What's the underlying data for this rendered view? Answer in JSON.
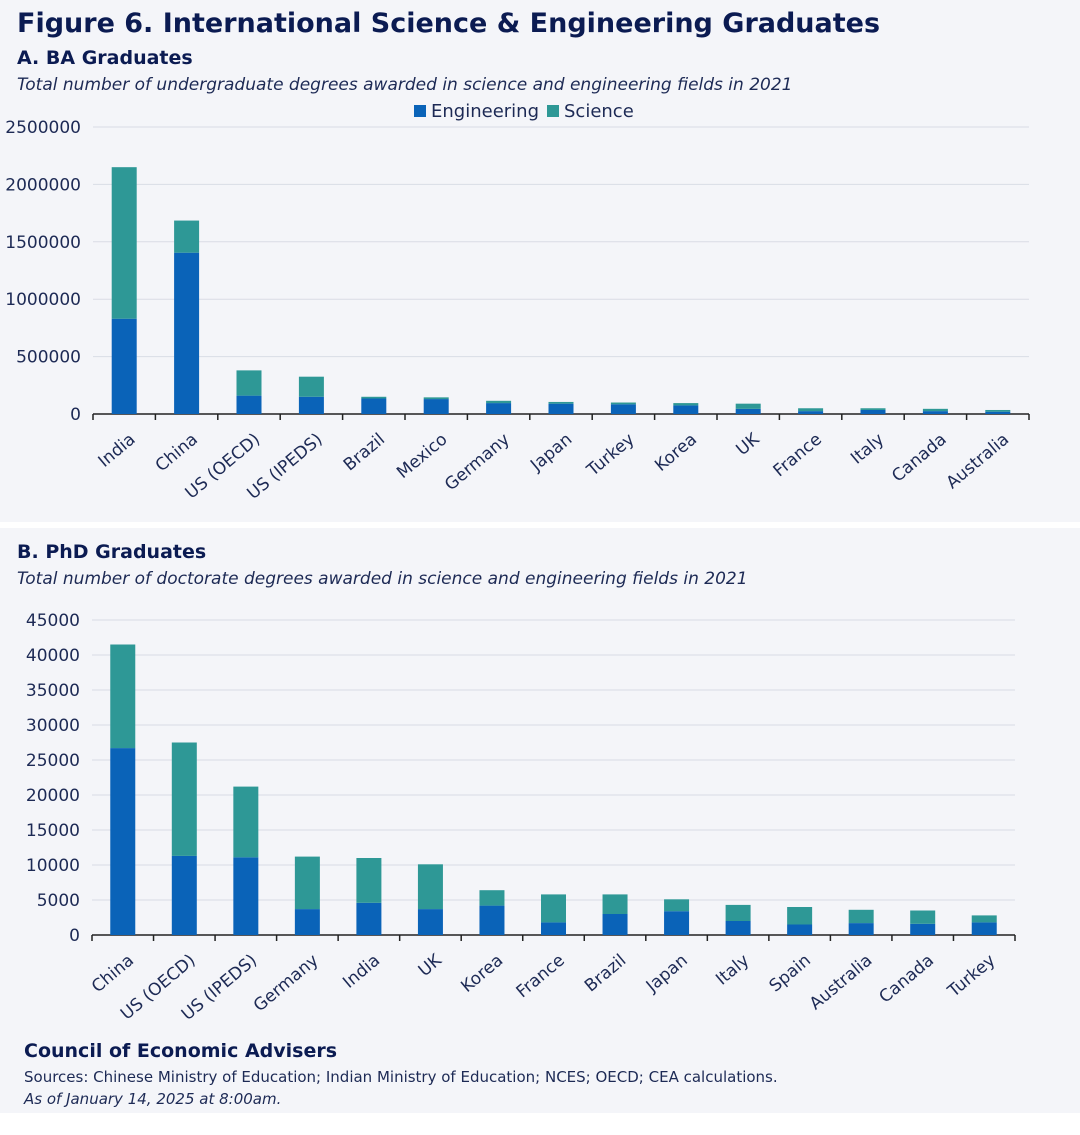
{
  "figure_title": "Figure 6. International Science & Engineering Graduates",
  "colors": {
    "engineering": "#0a63b8",
    "science": "#2e9896",
    "grid": "#d9dce5",
    "axis": "#222222"
  },
  "legend": [
    {
      "label": "Engineering",
      "color": "#0a63b8"
    },
    {
      "label": "Science",
      "color": "#2e9896"
    }
  ],
  "chart_data": [
    {
      "type": "bar",
      "stacked": true,
      "title": "A. BA Graduates",
      "subtitle": "Total number of undergraduate degrees awarded in science and engineering fields in 2021",
      "categories": [
        "India",
        "China",
        "US (OECD)",
        "US (IPEDS)",
        "Brazil",
        "Mexico",
        "Germany",
        "Japan",
        "Turkey",
        "Korea",
        "UK",
        "France",
        "Italy",
        "Canada",
        "Australia"
      ],
      "series": [
        {
          "name": "Engineering",
          "values": [
            830000,
            1405000,
            160000,
            150000,
            135000,
            130000,
            95000,
            90000,
            85000,
            75000,
            45000,
            25000,
            35000,
            25000,
            20000
          ]
        },
        {
          "name": "Science",
          "values": [
            1320000,
            280000,
            220000,
            175000,
            15000,
            15000,
            20000,
            15000,
            15000,
            20000,
            45000,
            25000,
            15000,
            20000,
            15000
          ]
        }
      ],
      "ylim": [
        0,
        2500000
      ],
      "yticks": [
        0,
        500000,
        1000000,
        1500000,
        2000000,
        2500000
      ],
      "ytick_labels": [
        "0",
        "500000",
        "1000000",
        "1500000",
        "2000000",
        "2500000"
      ],
      "grid": true,
      "legend_position": "top-center"
    },
    {
      "type": "bar",
      "stacked": true,
      "title": "B. PhD Graduates",
      "subtitle": "Total number of doctorate degrees awarded in science and engineering fields in 2021",
      "categories": [
        "China",
        "US (OECD)",
        "US (IPEDS)",
        "Germany",
        "India",
        "UK",
        "Korea",
        "France",
        "Brazil",
        "Japan",
        "Italy",
        "Spain",
        "Australia",
        "Canada",
        "Turkey"
      ],
      "series": [
        {
          "name": "Engineering",
          "values": [
            26700,
            11300,
            11100,
            3700,
            4600,
            3700,
            4200,
            1800,
            3000,
            3400,
            2000,
            1500,
            1700,
            1600,
            1800
          ]
        },
        {
          "name": "Science",
          "values": [
            14800,
            16200,
            10100,
            7500,
            6400,
            6400,
            2200,
            4000,
            2800,
            1700,
            2300,
            2500,
            1900,
            1900,
            1000
          ]
        }
      ],
      "ylim": [
        0,
        45000
      ],
      "yticks": [
        0,
        5000,
        10000,
        15000,
        20000,
        25000,
        30000,
        35000,
        40000,
        45000
      ],
      "ytick_labels": [
        "0",
        "5000",
        "10000",
        "15000",
        "20000",
        "25000",
        "30000",
        "35000",
        "40000",
        "45000"
      ],
      "grid": true
    }
  ],
  "footer": {
    "org": "Council of Economic Advisers",
    "sources": "Sources: Chinese Ministry of Education; Indian Ministry of Education; NCES; OECD; CEA calculations.",
    "date": "As of January 14, 2025 at 8:00am."
  }
}
